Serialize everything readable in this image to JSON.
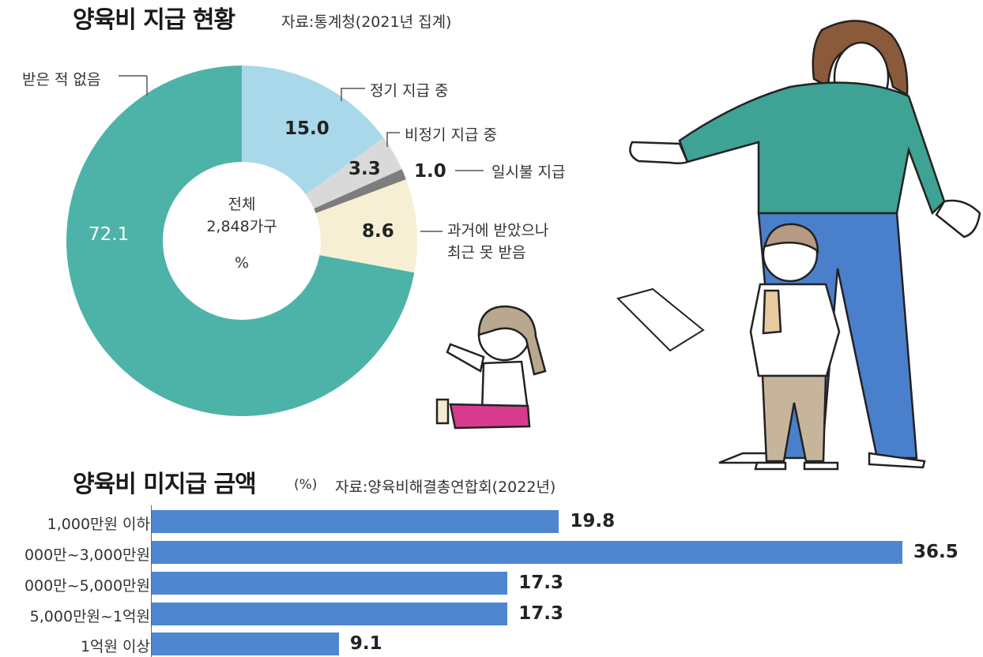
{
  "colors": {
    "teal": "#4db3a8",
    "light_blue": "#a9d8ea",
    "light_gray": "#d9d9d9",
    "dark_gray": "#7d7d7d",
    "cream": "#f6efd4",
    "bar_blue": "#4f86d0"
  },
  "donut": {
    "title": "양육비 지급 현황",
    "source": "자료:통계청(2021년 집계)",
    "center_line1": "전체",
    "center_line2": "2,848가구",
    "center_unit": "%"
  },
  "bars": {
    "title": "양육비 미지급 금액",
    "unit": "(%)",
    "source": "자료:양육비해결총연합회(2022년)"
  },
  "illustration": {
    "name": "parent-and-children-illustration"
  },
  "chart_data": [
    {
      "type": "pie",
      "title": "양육비 지급 현황",
      "categories": [
        "정기 지급 중",
        "비정기 지급 중",
        "일시불 지급",
        "과거에 받았으나 최근 못 받음",
        "받은 적 없음"
      ],
      "label_lines": [
        [
          "정기 지급 중"
        ],
        [
          "비정기 지급 중"
        ],
        [
          "일시불 지급"
        ],
        [
          "과거에 받았으나",
          "최근 못 받음"
        ],
        [
          "받은 적 없음"
        ]
      ],
      "values": [
        15.0,
        3.3,
        1.0,
        8.6,
        72.1
      ],
      "value_labels": [
        "15.0",
        "3.3",
        "1.0",
        "8.6",
        "72.1"
      ],
      "colors": [
        "#a9d8ea",
        "#d9d9d9",
        "#7d7d7d",
        "#f6efd4",
        "#4db3a8"
      ],
      "unit": "%"
    },
    {
      "type": "bar",
      "orientation": "horizontal",
      "title": "양육비 미지급 금액",
      "categories": [
        "1,000만원 이하",
        "000만~3,000만원",
        "000만~5,000만원",
        "5,000만원~1억원",
        "1억원 이상"
      ],
      "values": [
        19.8,
        36.5,
        17.3,
        17.3,
        9.1
      ],
      "value_labels": [
        "19.8",
        "36.5",
        "17.3",
        "17.3",
        "9.1"
      ],
      "unit": "%"
    }
  ]
}
